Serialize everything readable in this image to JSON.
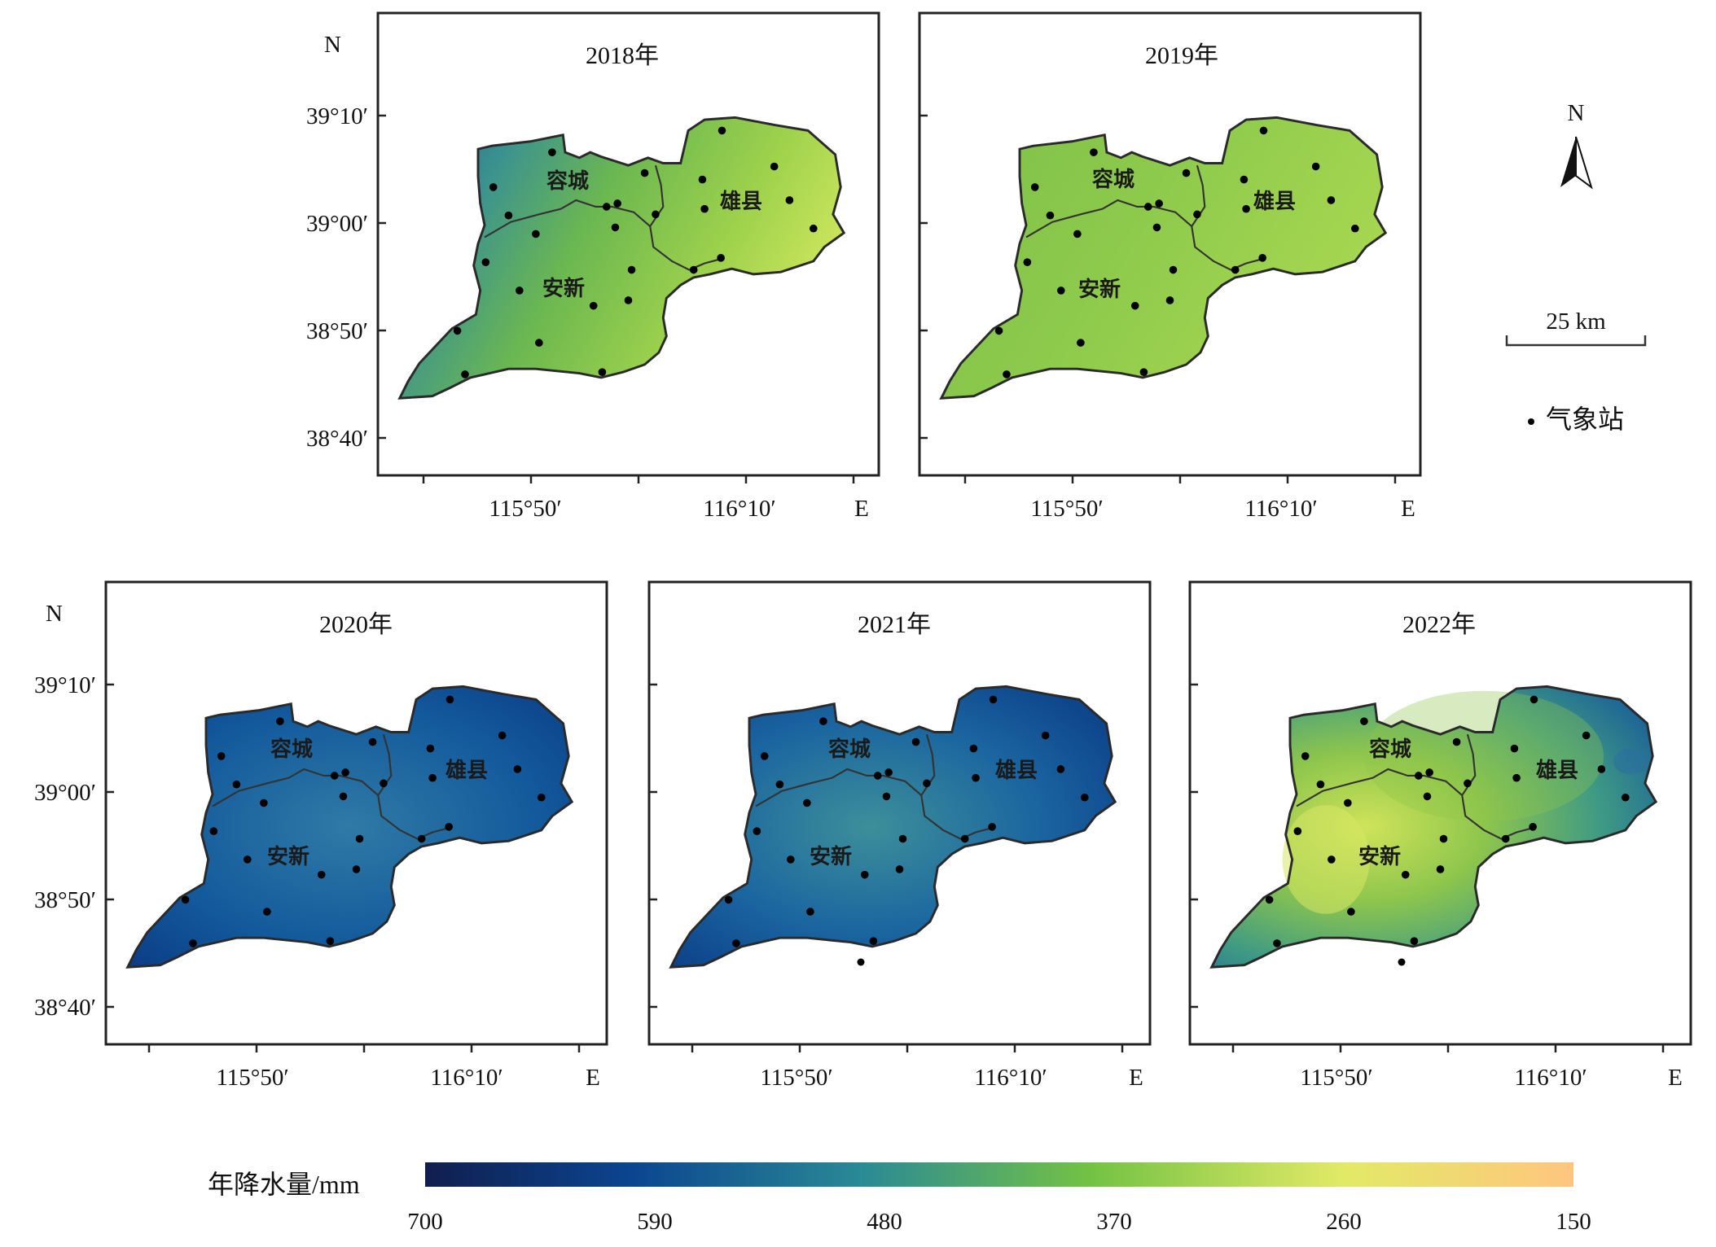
{
  "panels": [
    {
      "title": "2018年",
      "year": 2018,
      "gradient": "g2018"
    },
    {
      "title": "2019年",
      "year": 2019,
      "gradient": "g2019"
    },
    {
      "title": "2020年",
      "year": 2020,
      "gradient": "g2020"
    },
    {
      "title": "2021年",
      "year": 2021,
      "gradient": "g2021"
    },
    {
      "title": "2022年",
      "year": 2022,
      "gradient": "g2022"
    }
  ],
  "axes": {
    "north_label": "N",
    "east_label": "E",
    "lat_labels": [
      "39°10′",
      "39°00′",
      "38°50′",
      "38°40′"
    ],
    "lon_labels": [
      "115°50′",
      "116°10′"
    ]
  },
  "counties": [
    "容城",
    "雄县",
    "安新"
  ],
  "legend": {
    "north_arrow_label": "N",
    "scale_label": "25 km",
    "station_label": "气象站",
    "colorbar_title": "年降水量/mm",
    "colorbar_ticks": [
      "700",
      "590",
      "480",
      "370",
      "260",
      "150"
    ],
    "colors": [
      "#0c2a6e",
      "#0a4f8f",
      "#2a8f8a",
      "#7cc243",
      "#e4ec6a",
      "#fdc77e"
    ]
  }
}
